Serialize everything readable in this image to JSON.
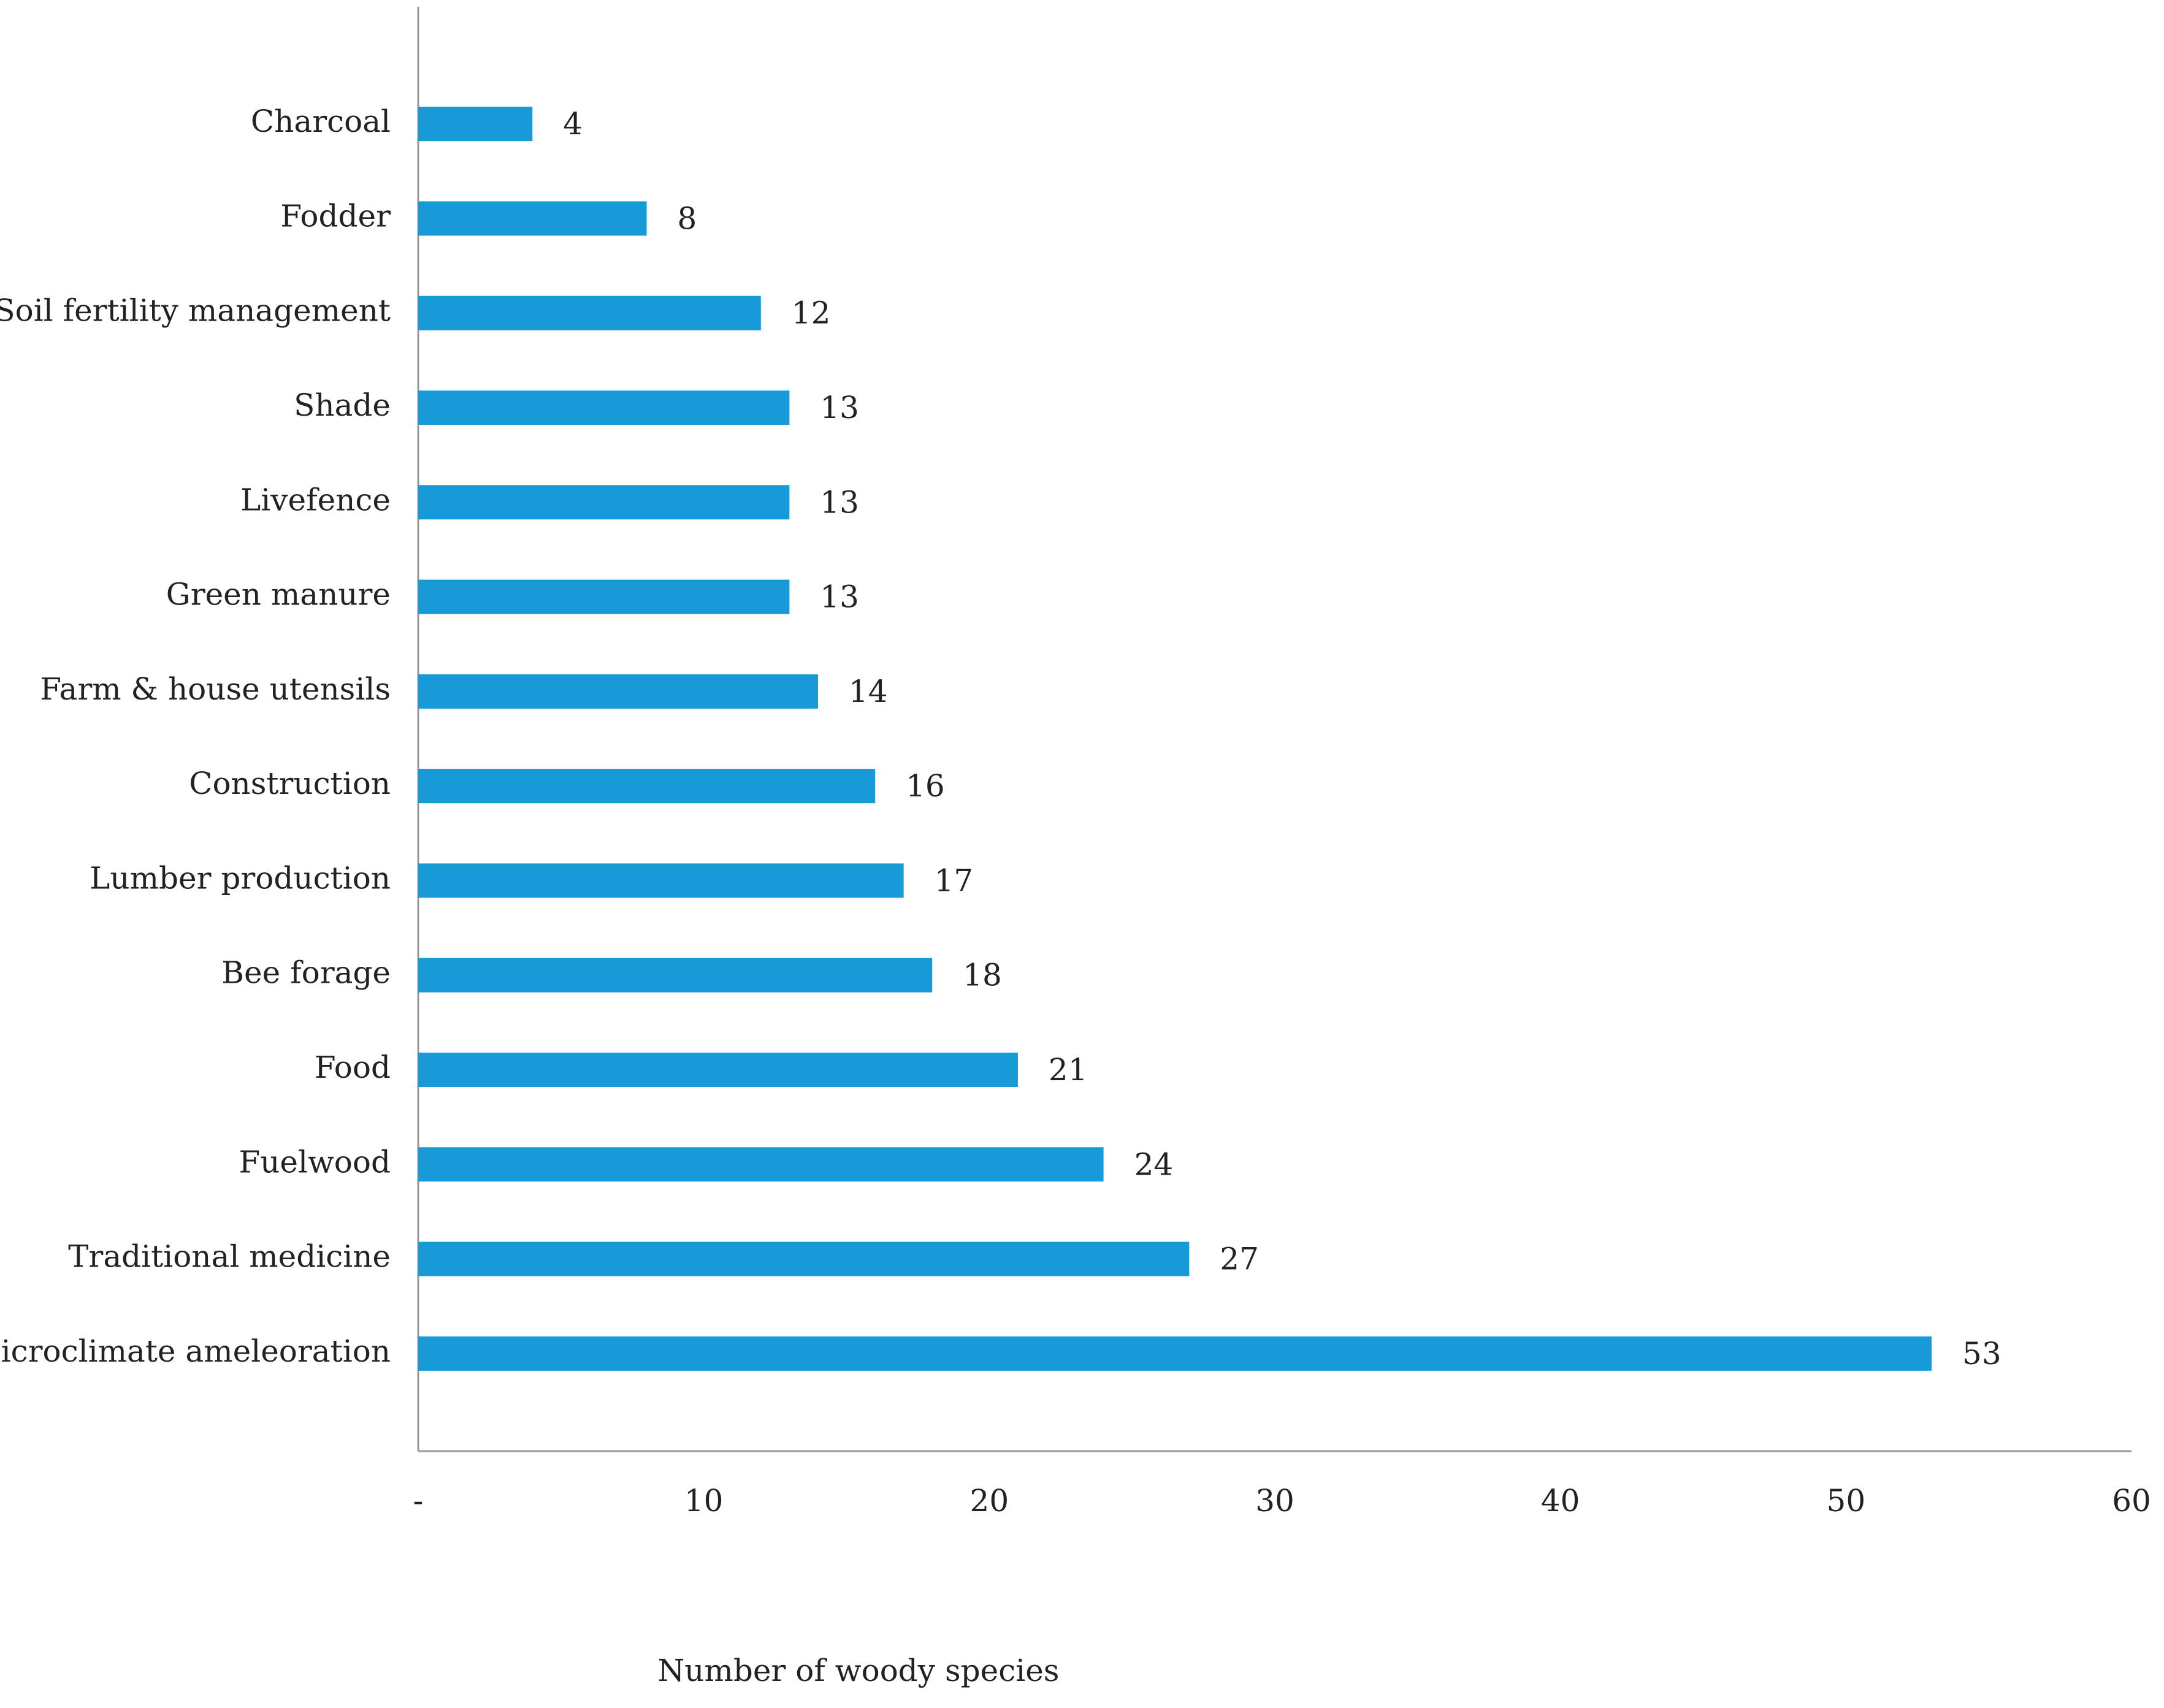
{
  "chart_data": {
    "type": "barh",
    "categories": [
      "Charcoal",
      "Fodder",
      "Soil fertility management",
      "Shade",
      "Livefence",
      "Green manure",
      "Farm & house utensils",
      "Construction",
      "Lumber production",
      "Bee forage",
      "Food",
      "Fuelwood",
      "Traditional medicine",
      "Microclimate ameleoration"
    ],
    "values": [
      4,
      8,
      12,
      13,
      13,
      13,
      14,
      16,
      17,
      18,
      21,
      24,
      27,
      53
    ],
    "color": "#189ad6",
    "x_label": "Number of woody species",
    "xlim": [
      0,
      60
    ],
    "xticks": [
      {
        "value": 0,
        "label": "-"
      },
      10,
      20,
      30,
      40,
      50,
      60
    ],
    "grid": false
  }
}
